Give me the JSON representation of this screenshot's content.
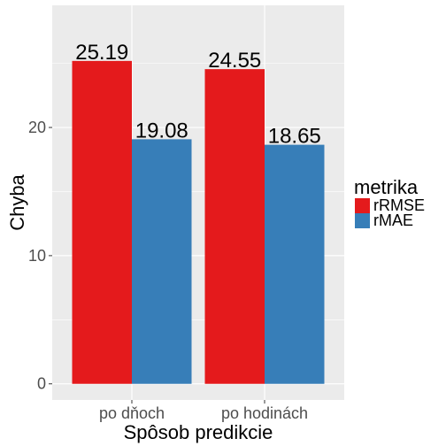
{
  "chart_data": {
    "type": "bar",
    "categories": [
      "po dňoch",
      "po hodinách"
    ],
    "series": [
      {
        "name": "rRMSE",
        "values": [
          25.19,
          24.55
        ],
        "color": "#e41a1c"
      },
      {
        "name": "rMAE",
        "values": [
          19.08,
          18.65
        ],
        "color": "#377eb8"
      }
    ],
    "data_labels": [
      [
        "25.19",
        "24.55"
      ],
      [
        "19.08",
        "18.65"
      ]
    ],
    "xlabel": "Spôsob predikcie",
    "ylabel": "Chyba",
    "ylim": [
      -1.26,
      29.53
    ],
    "yticks": [
      0,
      10,
      20
    ],
    "ytick_labels": [
      "0",
      "10",
      "20"
    ],
    "legend_title": "metrika",
    "legend_position": "right",
    "grid": true,
    "panel_background": "#ebebeb",
    "grid_color": "#ffffff"
  }
}
